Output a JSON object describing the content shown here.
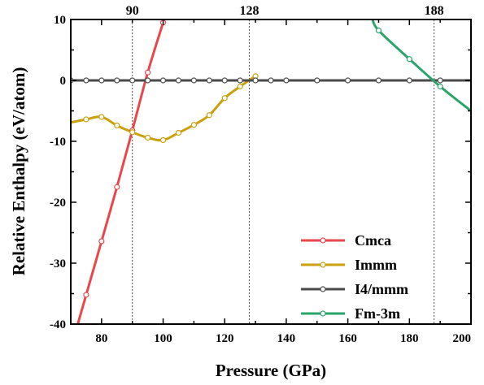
{
  "chart_data": {
    "type": "line",
    "xlabel": "Pressure (GPa)",
    "ylabel": "Relative Enthalpy (eV/atom)",
    "xlim": [
      70,
      200
    ],
    "ylim": [
      -40,
      10
    ],
    "xticks": [
      80,
      100,
      120,
      140,
      160,
      180,
      200
    ],
    "yticks": [
      10,
      0,
      -10,
      -20,
      -30,
      -40
    ],
    "grid": false,
    "legend": "bottom-right",
    "transition_lines": [
      {
        "x": 90,
        "label": "90"
      },
      {
        "x": 128,
        "label": "128"
      },
      {
        "x": 188,
        "label": "188"
      }
    ],
    "series": [
      {
        "name": "Cmca",
        "color": "#e8474b",
        "x": [
          75,
          80,
          85,
          90,
          95,
          100
        ],
        "y": [
          -35.2,
          -26.4,
          -17.5,
          -8.2,
          1.3,
          9.5
        ]
      },
      {
        "name": "Immm",
        "color": "#c9a10a",
        "x": [
          75,
          80,
          85,
          90,
          95,
          100,
          105,
          110,
          115,
          120,
          125,
          130
        ],
        "y": [
          -6.4,
          -6.0,
          -7.4,
          -8.5,
          -9.4,
          -9.8,
          -8.6,
          -7.3,
          -5.7,
          -2.9,
          -1.0,
          0.7
        ]
      },
      {
        "name": "I4/mmm",
        "color": "#4a4a4a",
        "x": [
          70,
          75,
          80,
          85,
          90,
          95,
          100,
          105,
          110,
          115,
          120,
          125,
          130,
          135,
          140,
          150,
          160,
          170,
          180,
          190
        ],
        "y": [
          0,
          0,
          0,
          0,
          0,
          0,
          0,
          0,
          0,
          0,
          0,
          0,
          0,
          0,
          0,
          0,
          0,
          0,
          0,
          0
        ]
      },
      {
        "name": "Fm-3m",
        "color": "#2aa56a",
        "x": [
          170,
          180,
          190
        ],
        "y": [
          8.2,
          3.5,
          -1.0
        ]
      }
    ]
  }
}
